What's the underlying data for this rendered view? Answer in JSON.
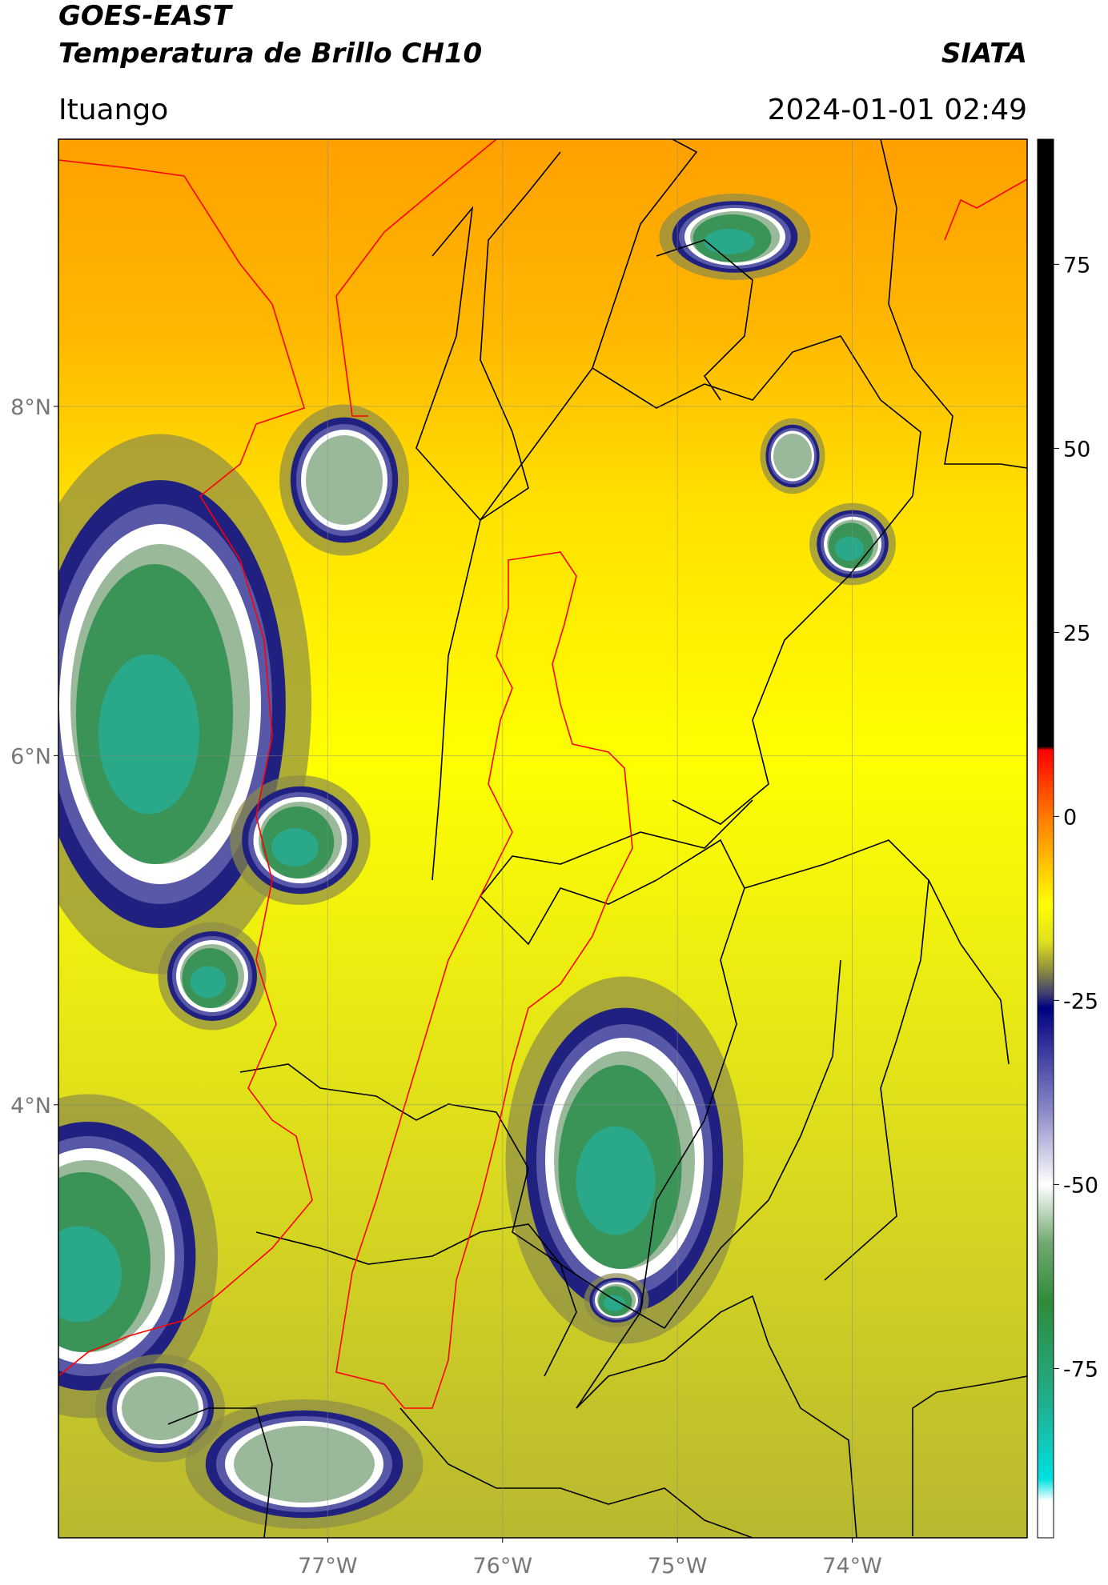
{
  "header": {
    "title": "GOES-EAST",
    "subtitle": "Temperatura de Brillo CH10",
    "brand": "SIATA",
    "location": "Ituango",
    "timestamp": "2024-01-01 02:49"
  },
  "map": {
    "xlim": [
      -78.54,
      -73.0
    ],
    "ylim": [
      1.52,
      9.53
    ],
    "xticks": [
      {
        "value": -77,
        "label": "77°W"
      },
      {
        "value": -76,
        "label": "76°W"
      },
      {
        "value": -75,
        "label": "75°W"
      },
      {
        "value": -74,
        "label": "74°W"
      }
    ],
    "yticks": [
      {
        "value": 8,
        "label": "8°N"
      },
      {
        "value": 6,
        "label": "6°N"
      },
      {
        "value": 4,
        "label": "4°N"
      }
    ],
    "grid": true
  },
  "colorbar": {
    "lim": [
      -98,
      92
    ],
    "ticks": [
      75,
      50,
      25,
      0,
      -25,
      -50,
      -75
    ],
    "stops": [
      {
        "value": 92,
        "color": "#000000"
      },
      {
        "value": 9.5,
        "color": "#000000"
      },
      {
        "value": 9,
        "color": "#ff0000"
      },
      {
        "value": 0,
        "color": "#ff7a00"
      },
      {
        "value": -8,
        "color": "#ffd400"
      },
      {
        "value": -12,
        "color": "#ffff00"
      },
      {
        "value": -17,
        "color": "#e0e020"
      },
      {
        "value": -21,
        "color": "#8a8a40"
      },
      {
        "value": -24,
        "color": "#404070"
      },
      {
        "value": -26,
        "color": "#000080"
      },
      {
        "value": -40,
        "color": "#8a8ac8"
      },
      {
        "value": -50,
        "color": "#ffffff"
      },
      {
        "value": -58,
        "color": "#70a870"
      },
      {
        "value": -66,
        "color": "#2e8b3a"
      },
      {
        "value": -80,
        "color": "#20b090"
      },
      {
        "value": -90,
        "color": "#00e0e0"
      },
      {
        "value": -93,
        "color": "#ffffff"
      },
      {
        "value": -98,
        "color": "#ffffff"
      }
    ]
  }
}
